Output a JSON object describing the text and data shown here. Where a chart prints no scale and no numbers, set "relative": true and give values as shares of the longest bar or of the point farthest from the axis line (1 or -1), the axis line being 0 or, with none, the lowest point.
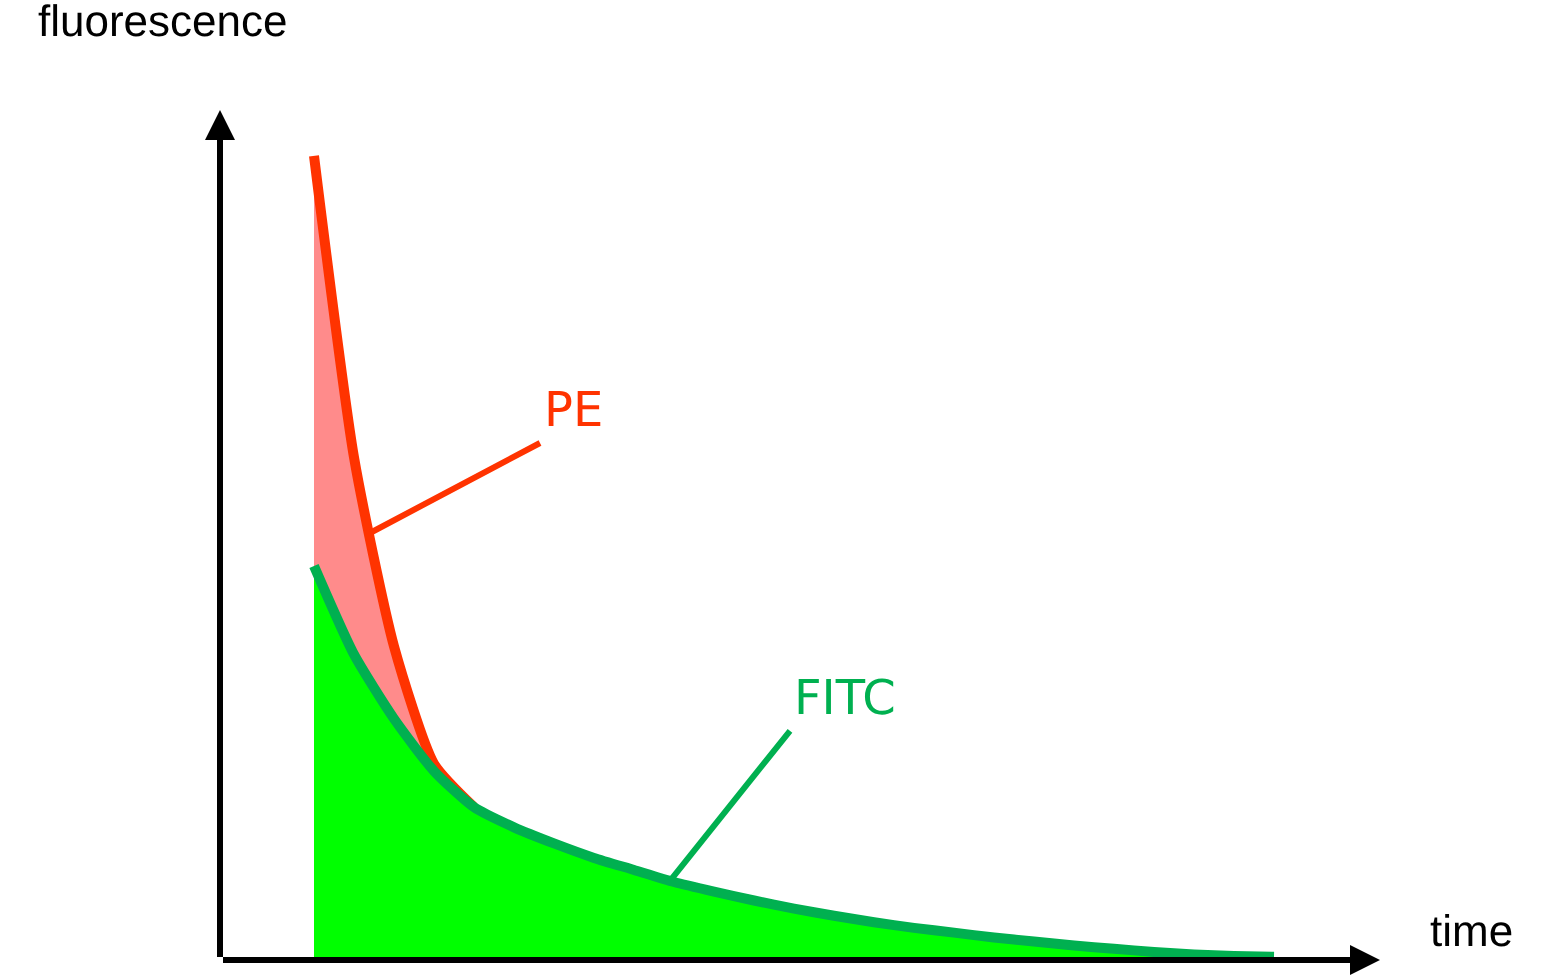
{
  "chart_data": {
    "type": "area",
    "xlabel": "time",
    "ylabel": "fluorescence",
    "relative": true,
    "legend": false,
    "grid": false,
    "categories": [
      null,
      null,
      null,
      null,
      null,
      null,
      null,
      null,
      null,
      null,
      null,
      null,
      null,
      null,
      null,
      null,
      null,
      null,
      null,
      null,
      null,
      null,
      null,
      null,
      null
    ],
    "series": [
      {
        "name": "PE",
        "color": "#ff3300",
        "values": [
          1.0,
          0.625,
          0.39,
          0.244,
          0.19,
          null,
          null,
          null,
          null,
          null,
          null,
          null,
          null,
          null,
          null,
          null,
          null,
          null,
          null,
          null,
          null,
          null,
          null,
          null,
          null
        ]
      },
      {
        "name": "FITC",
        "color": "#00b050",
        "values": [
          0.49,
          0.38,
          0.3,
          0.235,
          0.19,
          0.165,
          0.145,
          0.127,
          0.112,
          0.097,
          0.085,
          0.074,
          0.064,
          0.055,
          0.047,
          0.04,
          0.034,
          0.028,
          0.023,
          0.018,
          0.014,
          0.01,
          0.007,
          0.005,
          0.004
        ]
      }
    ]
  }
}
